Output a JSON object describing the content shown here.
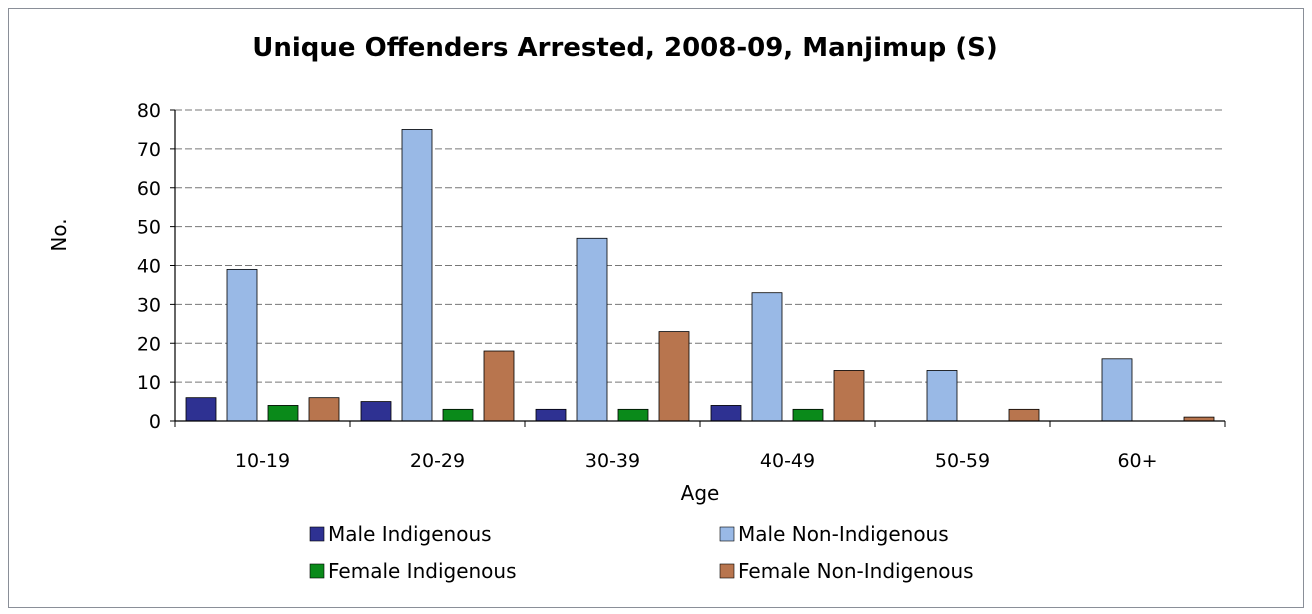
{
  "chart_data": {
    "type": "bar",
    "title": "Unique Offenders Arrested, 2008-09,  Manjimup (S)",
    "xlabel": "Age",
    "ylabel": "No.",
    "ylim": [
      0,
      80
    ],
    "yticks": [
      0,
      10,
      20,
      30,
      40,
      50,
      60,
      70,
      80
    ],
    "categories": [
      "10-19",
      "20-29",
      "30-39",
      "40-49",
      "50-59",
      "60+"
    ],
    "series": [
      {
        "name": "Male Indigenous",
        "color": "#2e3192",
        "values": [
          6,
          5,
          3,
          4,
          0,
          0
        ]
      },
      {
        "name": "Male Non-Indigenous",
        "color": "#99b9e6",
        "values": [
          39,
          75,
          47,
          33,
          13,
          16
        ]
      },
      {
        "name": "Female Indigenous",
        "color": "#0a8a1a",
        "values": [
          4,
          3,
          3,
          3,
          0,
          0
        ]
      },
      {
        "name": "Female Non-Indigenous",
        "color": "#b8754e",
        "values": [
          6,
          18,
          23,
          13,
          3,
          1
        ]
      }
    ],
    "grid": true,
    "legend_position": "bottom"
  }
}
